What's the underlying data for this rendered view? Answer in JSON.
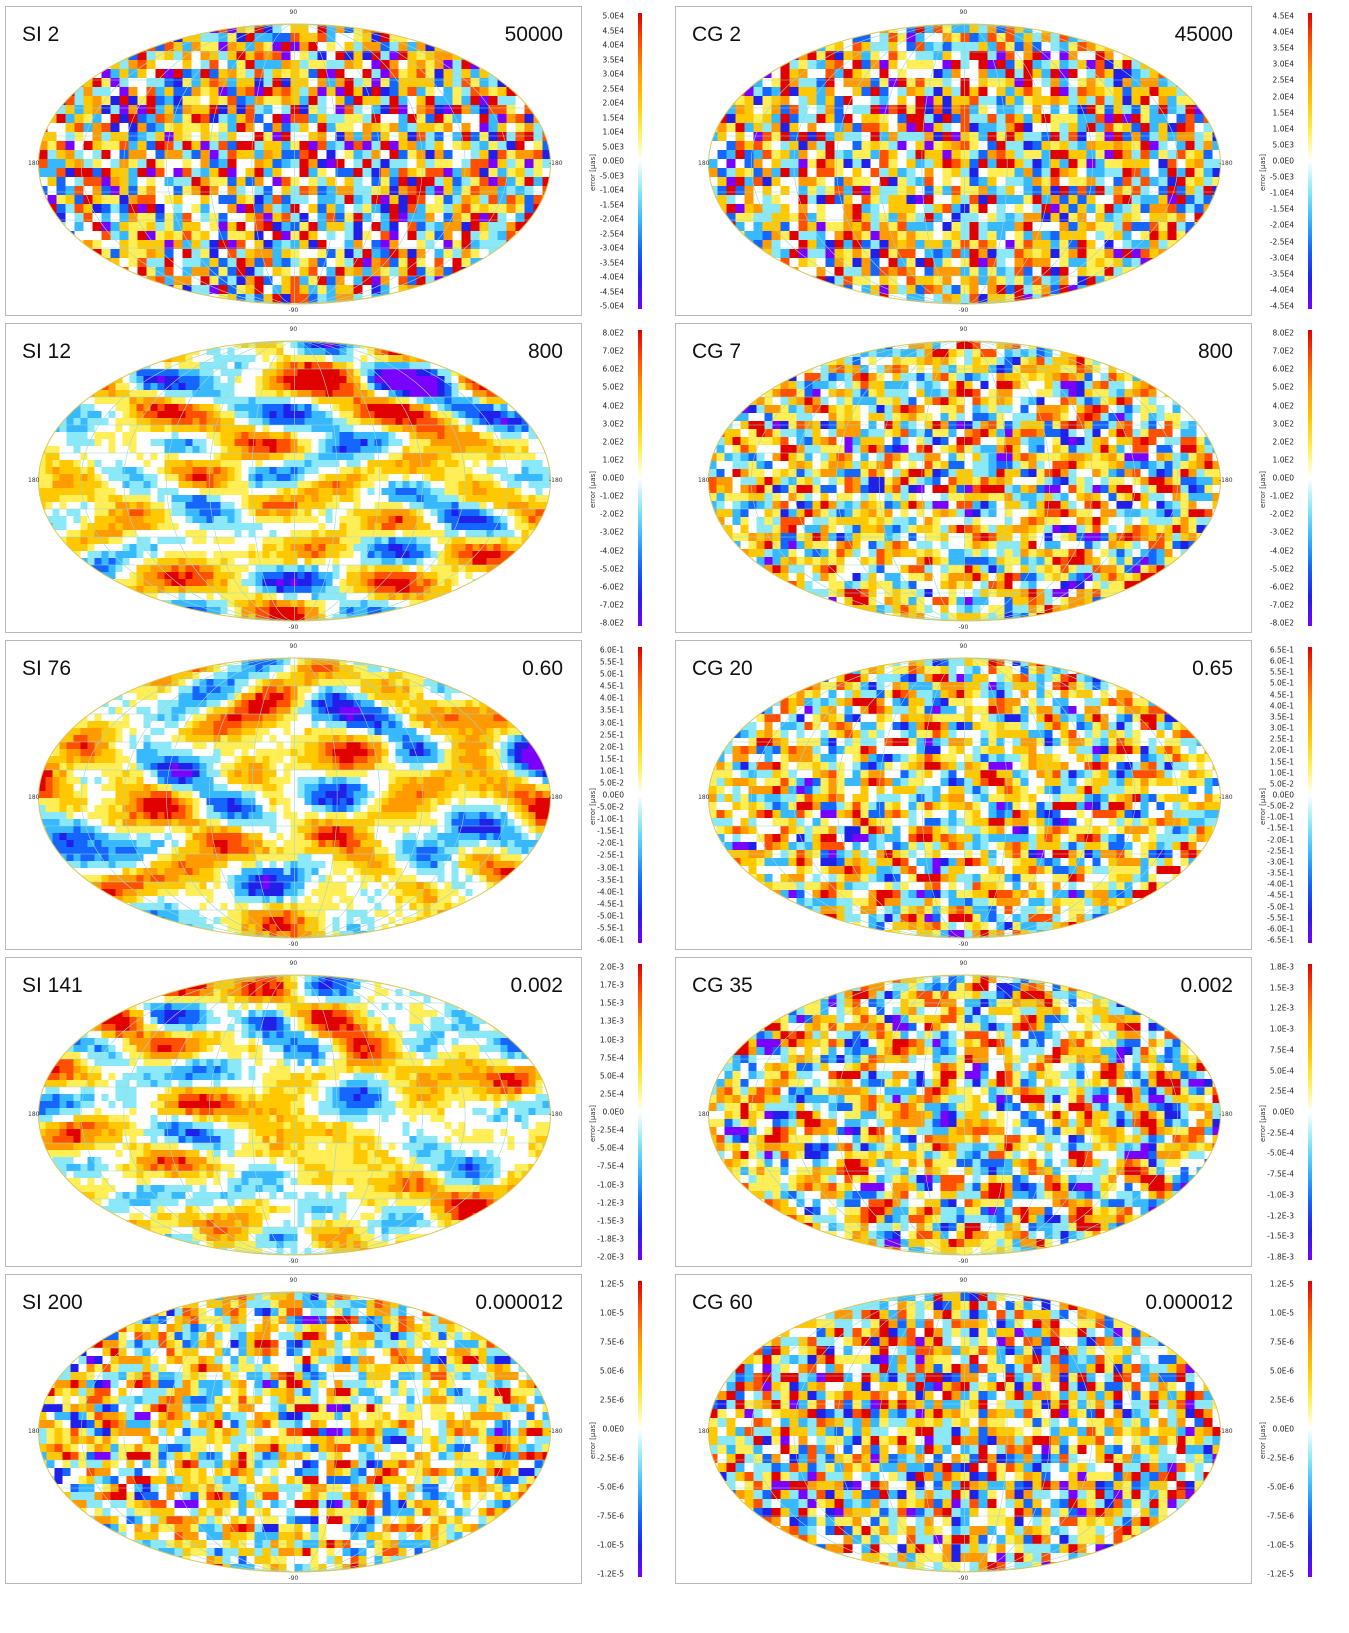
{
  "colorbar_label": "error [µas]",
  "axis_labels": {
    "north": "90",
    "south": "-90",
    "west": "180",
    "east": "-180"
  },
  "palette": [
    "#7a00ff",
    "#2020e8",
    "#1565ff",
    "#38b8ff",
    "#8be8f8",
    "#ffffff",
    "#ffee55",
    "#ffc800",
    "#ff9a00",
    "#ff5000",
    "#e00000"
  ],
  "chart_data": [
    {
      "type": "heatmap",
      "title": "SI 2",
      "scale_label": "50000",
      "pattern": "fine",
      "colorbar_ticks": [
        "5.0E4",
        "4.5E4",
        "4.0E4",
        "3.5E4",
        "3.0E4",
        "2.5E4",
        "2.0E4",
        "1.5E4",
        "1.0E4",
        "5.0E3",
        "0.0E0",
        "-5.0E3",
        "-1.0E4",
        "-1.5E4",
        "-2.0E4",
        "-2.5E4",
        "-3.0E4",
        "-3.5E4",
        "-4.0E4",
        "-4.5E4",
        "-5.0E4"
      ]
    },
    {
      "type": "heatmap",
      "title": "CG 2",
      "scale_label": "45000",
      "pattern": "fine",
      "colorbar_ticks": [
        "4.5E4",
        "4.0E4",
        "3.5E4",
        "3.0E4",
        "2.5E4",
        "2.0E4",
        "1.5E4",
        "1.0E4",
        "5.0E3",
        "0.0E0",
        "-5.0E3",
        "-1.0E4",
        "-1.5E4",
        "-2.0E4",
        "-2.5E4",
        "-3.0E4",
        "-3.5E4",
        "-4.0E4",
        "-4.5E4"
      ]
    },
    {
      "type": "heatmap",
      "title": "SI 12",
      "scale_label": "800",
      "pattern": "coarse",
      "colorbar_ticks": [
        "8.0E2",
        "7.0E2",
        "6.0E2",
        "5.0E2",
        "4.0E2",
        "3.0E2",
        "2.0E2",
        "1.0E2",
        "0.0E0",
        "-1.0E2",
        "-2.0E2",
        "-3.0E2",
        "-4.0E2",
        "-5.0E2",
        "-6.0E2",
        "-7.0E2",
        "-8.0E2"
      ]
    },
    {
      "type": "heatmap",
      "title": "CG 7",
      "scale_label": "800",
      "pattern": "medium",
      "colorbar_ticks": [
        "8.0E2",
        "7.0E2",
        "6.0E2",
        "5.0E2",
        "4.0E2",
        "3.0E2",
        "2.0E2",
        "1.0E2",
        "0.0E0",
        "-1.0E2",
        "-2.0E2",
        "-3.0E2",
        "-4.0E2",
        "-5.0E2",
        "-6.0E2",
        "-7.0E2",
        "-8.0E2"
      ]
    },
    {
      "type": "heatmap",
      "title": "SI 76",
      "scale_label": "0.60",
      "pattern": "coarse",
      "colorbar_ticks": [
        "6.0E-1",
        "5.5E-1",
        "5.0E-1",
        "4.5E-1",
        "4.0E-1",
        "3.5E-1",
        "3.0E-1",
        "2.5E-1",
        "2.0E-1",
        "1.5E-1",
        "1.0E-1",
        "5.0E-2",
        "0.0E0",
        "-5.0E-2",
        "-1.0E-1",
        "-1.5E-1",
        "-2.0E-1",
        "-2.5E-1",
        "-3.0E-1",
        "-3.5E-1",
        "-4.0E-1",
        "-4.5E-1",
        "-5.0E-1",
        "-5.5E-1",
        "-6.0E-1"
      ]
    },
    {
      "type": "heatmap",
      "title": "CG 20",
      "scale_label": "0.65",
      "pattern": "medium",
      "colorbar_ticks": [
        "6.5E-1",
        "6.0E-1",
        "5.5E-1",
        "5.0E-1",
        "4.5E-1",
        "4.0E-1",
        "3.5E-1",
        "3.0E-1",
        "2.5E-1",
        "2.0E-1",
        "1.5E-1",
        "1.0E-1",
        "5.0E-2",
        "0.0E0",
        "-5.0E-2",
        "-1.0E-1",
        "-1.5E-1",
        "-2.0E-1",
        "-2.5E-1",
        "-3.0E-1",
        "-3.5E-1",
        "-4.0E-1",
        "-4.5E-1",
        "-5.0E-1",
        "-5.5E-1",
        "-6.0E-1",
        "-6.5E-1"
      ]
    },
    {
      "type": "heatmap",
      "title": "SI 141",
      "scale_label": "0.002",
      "pattern": "coarse",
      "colorbar_ticks": [
        "2.0E-3",
        "1.7E-3",
        "1.5E-3",
        "1.3E-3",
        "1.0E-3",
        "7.5E-4",
        "5.0E-4",
        "2.5E-4",
        "0.0E0",
        "-2.5E-4",
        "-5.0E-4",
        "-7.5E-4",
        "-1.0E-3",
        "-1.2E-3",
        "-1.5E-3",
        "-1.8E-3",
        "-2.0E-3"
      ]
    },
    {
      "type": "heatmap",
      "title": "CG 35",
      "scale_label": "0.002",
      "pattern": "medium",
      "colorbar_ticks": [
        "1.8E-3",
        "1.5E-3",
        "1.2E-3",
        "1.0E-3",
        "7.5E-4",
        "5.0E-4",
        "2.5E-4",
        "0.0E0",
        "-2.5E-4",
        "-5.0E-4",
        "-7.5E-4",
        "-1.0E-3",
        "-1.2E-3",
        "-1.5E-3",
        "-1.8E-3"
      ]
    },
    {
      "type": "heatmap",
      "title": "SI 200",
      "scale_label": "0.000012",
      "pattern": "medium",
      "colorbar_ticks": [
        "1.2E-5",
        "1.0E-5",
        "7.5E-6",
        "5.0E-6",
        "2.5E-6",
        "0.0E0",
        "-2.5E-6",
        "-5.0E-6",
        "-7.5E-6",
        "-1.0E-5",
        "-1.2E-5"
      ]
    },
    {
      "type": "heatmap",
      "title": "CG 60",
      "scale_label": "0.000012",
      "pattern": "fine",
      "colorbar_ticks": [
        "1.2E-5",
        "1.0E-5",
        "7.5E-6",
        "5.0E-6",
        "2.5E-6",
        "0.0E0",
        "-2.5E-6",
        "-5.0E-6",
        "-7.5E-6",
        "-1.0E-5",
        "-1.2E-5"
      ]
    }
  ]
}
